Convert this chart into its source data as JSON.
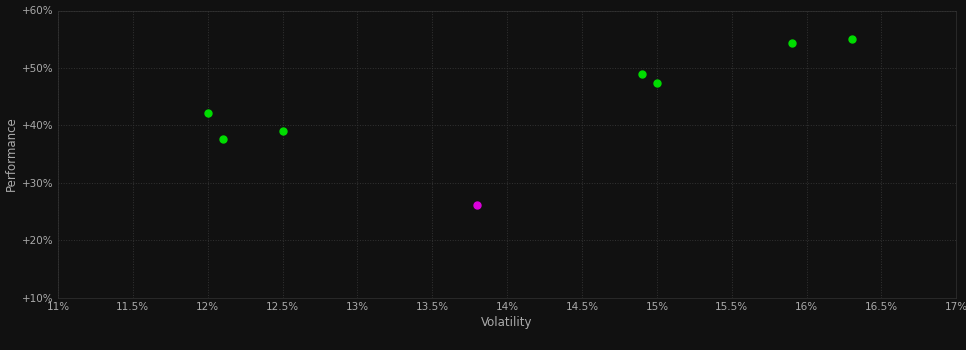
{
  "background_color": "#111111",
  "plot_bg_color": "#111111",
  "grid_color": "#333333",
  "xlabel": "Volatility",
  "ylabel": "Performance",
  "xlim": [
    0.11,
    0.17
  ],
  "ylim": [
    0.1,
    0.6
  ],
  "xticks": [
    0.11,
    0.115,
    0.12,
    0.125,
    0.13,
    0.135,
    0.14,
    0.145,
    0.15,
    0.155,
    0.16,
    0.165,
    0.17
  ],
  "yticks": [
    0.1,
    0.2,
    0.3,
    0.4,
    0.5,
    0.6
  ],
  "ytick_labels": [
    "+10%",
    "+20%",
    "+30%",
    "+40%",
    "+50%",
    "+60%"
  ],
  "xtick_labels": [
    "11%",
    "11.5%",
    "12%",
    "12.5%",
    "13%",
    "13.5%",
    "14%",
    "14.5%",
    "15%",
    "15.5%",
    "16%",
    "16.5%",
    "17%"
  ],
  "green_points": [
    [
      0.12,
      0.421
    ],
    [
      0.121,
      0.377
    ],
    [
      0.125,
      0.39
    ],
    [
      0.149,
      0.49
    ],
    [
      0.15,
      0.473
    ],
    [
      0.159,
      0.543
    ],
    [
      0.163,
      0.55
    ]
  ],
  "magenta_points": [
    [
      0.138,
      0.262
    ]
  ],
  "green_color": "#00dd00",
  "magenta_color": "#dd00dd",
  "text_color": "#aaaaaa",
  "marker_size": 5,
  "figsize": [
    9.66,
    3.5
  ],
  "dpi": 100
}
